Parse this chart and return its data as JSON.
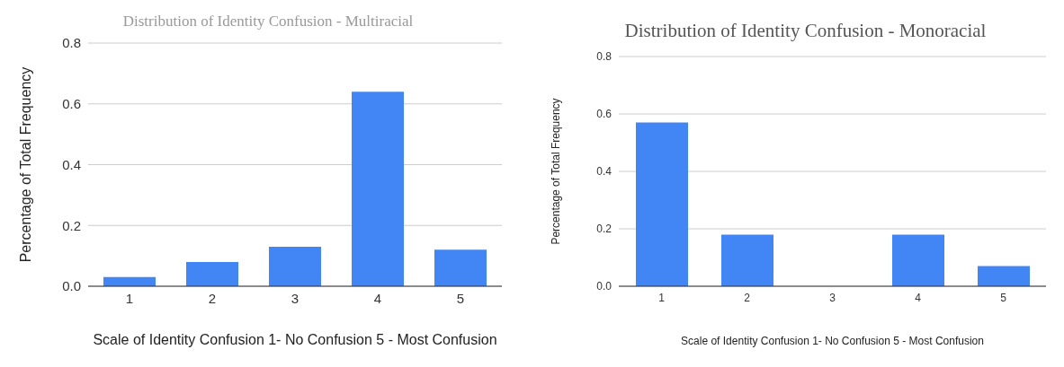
{
  "chart_data": [
    {
      "type": "bar",
      "title": "Distribution of Identity Confusion - Multiracial",
      "xlabel": "Scale of Identity Confusion 1- No Confusion 5 - Most Confusion",
      "ylabel": "Percentage of Total Frequency",
      "categories": [
        "1",
        "2",
        "3",
        "4",
        "5"
      ],
      "values": [
        0.03,
        0.08,
        0.13,
        0.64,
        0.12
      ],
      "color": "#4285f4",
      "ylim": [
        0,
        0.8
      ],
      "yticks": [
        {
          "value": 0,
          "label": "0.0"
        },
        0.2,
        0.4,
        0.6,
        0.8
      ],
      "grid": "y"
    },
    {
      "type": "bar",
      "title": "Distribution of Identity Confusion - Monoracial",
      "xlabel": "Scale of Identity Confusion 1- No Confusion 5 - Most Confusion",
      "ylabel": "Percentage of Total Frequency",
      "categories": [
        "1",
        "2",
        "3",
        "4",
        "5"
      ],
      "values": [
        0.57,
        0.18,
        0,
        0.18,
        0.07
      ],
      "color": "#4285f4",
      "ylim": [
        0,
        0.8
      ],
      "yticks": [
        {
          "value": 0,
          "label": "0.0"
        },
        0.2,
        0.4,
        0.6,
        0.8
      ],
      "grid": "y"
    }
  ]
}
